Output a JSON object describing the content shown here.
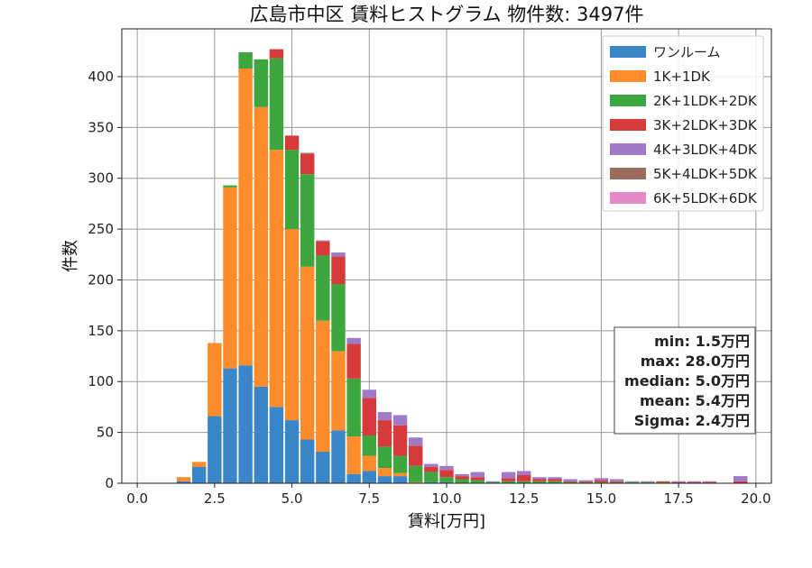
{
  "chart_data": {
    "type": "bar",
    "stacked": true,
    "title": "広島市中区 賃料ヒストグラム 物件数: 3497件",
    "xlabel": "賃料[万円]",
    "ylabel": "件数",
    "xlim": [
      -0.5,
      20.5
    ],
    "ylim": [
      0,
      447
    ],
    "xticks": [
      "0.0",
      "2.5",
      "5.0",
      "7.5",
      "10.0",
      "12.5",
      "15.0",
      "17.5",
      "20.0"
    ],
    "yticks": [
      0,
      50,
      100,
      150,
      200,
      250,
      300,
      350,
      400
    ],
    "grid": true,
    "legend_position": "top-right",
    "bin_width": 0.5,
    "x": [
      1.5,
      2.0,
      2.5,
      3.0,
      3.5,
      4.0,
      4.5,
      5.0,
      5.5,
      6.0,
      6.5,
      7.0,
      7.5,
      8.0,
      8.5,
      9.0,
      9.5,
      10.0,
      10.5,
      11.0,
      11.5,
      12.0,
      12.5,
      13.0,
      13.5,
      14.0,
      14.5,
      15.0,
      15.5,
      16.0,
      16.5,
      17.0,
      17.5,
      18.0,
      18.5,
      19.0,
      19.5
    ],
    "series": [
      {
        "name": "ワンルーム",
        "color": "#3a86c8",
        "values": [
          2,
          16,
          66,
          113,
          116,
          95,
          75,
          62,
          43,
          31,
          52,
          9,
          12,
          7,
          7,
          0,
          1,
          1,
          0,
          0,
          0,
          0,
          0,
          0,
          0,
          0,
          0,
          0,
          0,
          0,
          0,
          0,
          0,
          0,
          0,
          0,
          0
        ]
      },
      {
        "name": "1K+1DK",
        "color": "#ff8c2a",
        "values": [
          4,
          5,
          72,
          178,
          292,
          275,
          253,
          188,
          170,
          129,
          78,
          37,
          15,
          8,
          3,
          1,
          0,
          0,
          0,
          0,
          0,
          0,
          0,
          0,
          0,
          0,
          0,
          0,
          0,
          0,
          0,
          0,
          0,
          0,
          0,
          0,
          0
        ]
      },
      {
        "name": "2K+1LDK+2DK",
        "color": "#3ea63e",
        "values": [
          0,
          0,
          0,
          2,
          16,
          47,
          90,
          78,
          91,
          64,
          66,
          57,
          20,
          21,
          17,
          16,
          10,
          5,
          4,
          3,
          1,
          2,
          2,
          2,
          2,
          1,
          1,
          1,
          1,
          1,
          1,
          1,
          0,
          0,
          0,
          0,
          0
        ]
      },
      {
        "name": "3K+2LDK+3DK",
        "color": "#d63a3a",
        "values": [
          0,
          0,
          0,
          0,
          0,
          0,
          9,
          14,
          20,
          14,
          27,
          34,
          37,
          26,
          30,
          20,
          5,
          7,
          3,
          3,
          0,
          3,
          6,
          2,
          2,
          1,
          1,
          2,
          1,
          0,
          0,
          1,
          1,
          1,
          1,
          0,
          2
        ]
      },
      {
        "name": "4K+3LDK+4DK",
        "color": "#a07ac8",
        "values": [
          0,
          0,
          0,
          0,
          0,
          0,
          0,
          0,
          0,
          1,
          4,
          6,
          8,
          8,
          10,
          8,
          3,
          4,
          2,
          5,
          1,
          6,
          4,
          2,
          2,
          2,
          1,
          2,
          2,
          1,
          1,
          0,
          1,
          1,
          1,
          0,
          5
        ]
      },
      {
        "name": "5K+4LDK+5DK",
        "color": "#9a6a5a",
        "values": [
          0,
          0,
          0,
          0,
          0,
          0,
          0,
          0,
          1,
          0,
          0,
          0,
          0,
          0,
          0,
          0,
          0,
          0,
          0,
          0,
          0,
          0,
          0,
          0,
          0,
          0,
          0,
          0,
          0,
          0,
          0,
          0,
          0,
          0,
          0,
          0,
          0
        ]
      },
      {
        "name": "6K+5LDK+6DK",
        "color": "#e58ac8",
        "values": [
          0,
          0,
          0,
          0,
          0,
          0,
          0,
          0,
          0,
          0,
          0,
          0,
          0,
          0,
          0,
          0,
          0,
          0,
          0,
          0,
          0,
          0,
          0,
          0,
          0,
          0,
          0,
          0,
          0,
          0,
          0,
          0,
          0,
          0,
          0,
          0,
          0
        ]
      }
    ],
    "stats": [
      "min: 1.5万円",
      "max: 28.0万円",
      "median: 5.0万円",
      "mean: 5.4万円",
      "Sigma: 2.4万円"
    ],
    "colors": {
      "grid": "#999999",
      "axis": "#222222",
      "background": "#ffffff"
    }
  }
}
